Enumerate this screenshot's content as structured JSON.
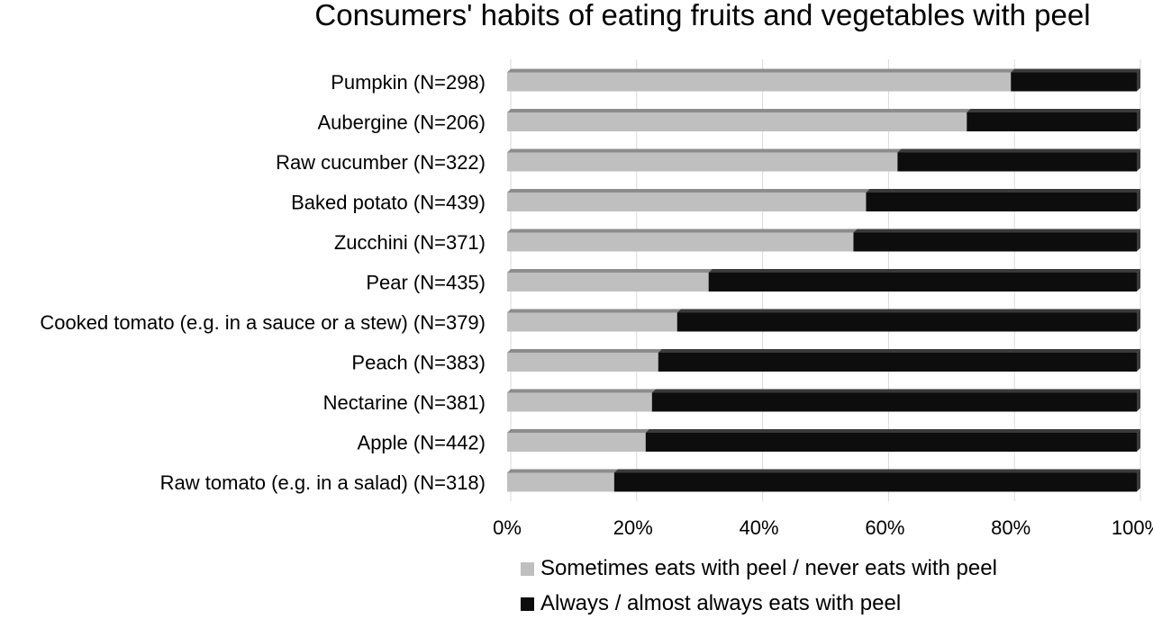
{
  "chart_data": {
    "type": "bar",
    "orientation": "horizontal",
    "stacked": "percent",
    "title": "Consumers' habits of eating fruits and vegetables with peel",
    "xlabel": "",
    "ylabel": "",
    "xlim": [
      0,
      100
    ],
    "x_ticks": [
      "0%",
      "20%",
      "40%",
      "60%",
      "80%",
      "100%"
    ],
    "x_tick_values": [
      0,
      20,
      40,
      60,
      80,
      100
    ],
    "grid": true,
    "legend_position": "bottom",
    "categories": [
      "Pumpkin (N=298)",
      "Aubergine (N=206)",
      "Raw cucumber (N=322)",
      "Baked potato (N=439)",
      "Zucchini (N=371)",
      "Pear (N=435)",
      "Cooked tomato (e.g. in a sauce or a stew) (N=379)",
      "Peach (N=383)",
      "Nectarine (N=381)",
      "Apple (N=442)",
      "Raw tomato (e.g. in a salad) (N=318)"
    ],
    "series": [
      {
        "name": "Sometimes eats with peel / never eats with peel",
        "color": "#bfbfbf",
        "values": [
          80,
          73,
          62,
          57,
          55,
          32,
          27,
          24,
          23,
          22,
          17
        ]
      },
      {
        "name": "Always / almost always eats with peel",
        "color": "#0d0d0d",
        "values": [
          20,
          27,
          38,
          43,
          45,
          68,
          73,
          76,
          77,
          78,
          83
        ]
      }
    ]
  }
}
